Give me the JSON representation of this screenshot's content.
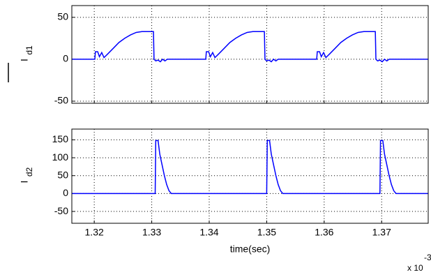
{
  "chart_data": [
    {
      "type": "line",
      "ylabel": "I",
      "ylabel_subscript": "d1",
      "xlim": [
        1.3161,
        1.3781
      ],
      "xticks": [
        1.32,
        1.33,
        1.34,
        1.35,
        1.36,
        1.37
      ],
      "show_xtick_labels": false,
      "ylim": [
        -52.5,
        64
      ],
      "yticks": [
        -50,
        0,
        50
      ],
      "grid": true,
      "series": [
        {
          "color": "#0000ff",
          "x": [
            1.3161,
            1.3201,
            1.3202,
            1.3206,
            1.3209,
            1.3213,
            1.3217,
            1.3223,
            1.3233,
            1.3243,
            1.3253,
            1.3263,
            1.3273,
            1.3283,
            1.3303,
            1.3304,
            1.3307,
            1.3311,
            1.3315,
            1.3319,
            1.3323,
            1.3327,
            1.3394,
            1.3395,
            1.3399,
            1.3402,
            1.3406,
            1.341,
            1.3416,
            1.3426,
            1.3436,
            1.3446,
            1.3456,
            1.3466,
            1.3476,
            1.3496,
            1.3497,
            1.35,
            1.3504,
            1.3508,
            1.3512,
            1.3516,
            1.352,
            1.3587,
            1.3588,
            1.3592,
            1.3595,
            1.3599,
            1.3603,
            1.3609,
            1.3619,
            1.3629,
            1.3639,
            1.3649,
            1.3659,
            1.3669,
            1.3689,
            1.369,
            1.3693,
            1.3697,
            1.3701,
            1.3705,
            1.3709,
            1.3713,
            1.3781
          ],
          "values": [
            0,
            0,
            9,
            9,
            3,
            8,
            2,
            6,
            13,
            20,
            25,
            29,
            32,
            33,
            33,
            0,
            -2,
            -1,
            -3,
            0,
            -2,
            0,
            0,
            9,
            9,
            3,
            8,
            2,
            6,
            13,
            20,
            25,
            29,
            32,
            33,
            33,
            0,
            -2,
            -1,
            -3,
            0,
            -2,
            0,
            0,
            9,
            9,
            3,
            8,
            2,
            6,
            13,
            20,
            25,
            29,
            32,
            33,
            33,
            0,
            -2,
            -1,
            -3,
            0,
            -2,
            0,
            0
          ]
        }
      ]
    },
    {
      "type": "line",
      "ylabel": "I",
      "ylabel_subscript": "d2",
      "xlabel": "time(sec)",
      "x_multiplier": "x 10",
      "x_multiplier_exponent": "-3",
      "xlim": [
        1.3161,
        1.3781
      ],
      "xticks": [
        1.32,
        1.33,
        1.34,
        1.35,
        1.36,
        1.37
      ],
      "show_xtick_labels": true,
      "ylim": [
        -83,
        180
      ],
      "yticks": [
        -50,
        0,
        50,
        100,
        150
      ],
      "grid": true,
      "series": [
        {
          "color": "#0000ff",
          "x": [
            1.3161,
            1.3306,
            1.3307,
            1.3311,
            1.3314,
            1.3318,
            1.3322,
            1.3326,
            1.333,
            1.3334,
            1.35,
            1.3501,
            1.3505,
            1.3508,
            1.3512,
            1.3516,
            1.352,
            1.3524,
            1.3528,
            1.3697,
            1.3698,
            1.3702,
            1.3705,
            1.3709,
            1.3713,
            1.3717,
            1.3721,
            1.3725,
            1.3781
          ],
          "values": [
            0,
            0,
            148,
            148,
            110,
            80,
            50,
            25,
            8,
            0,
            0,
            148,
            148,
            110,
            80,
            50,
            25,
            8,
            0,
            0,
            148,
            148,
            110,
            80,
            50,
            25,
            8,
            0,
            0
          ]
        }
      ]
    }
  ]
}
